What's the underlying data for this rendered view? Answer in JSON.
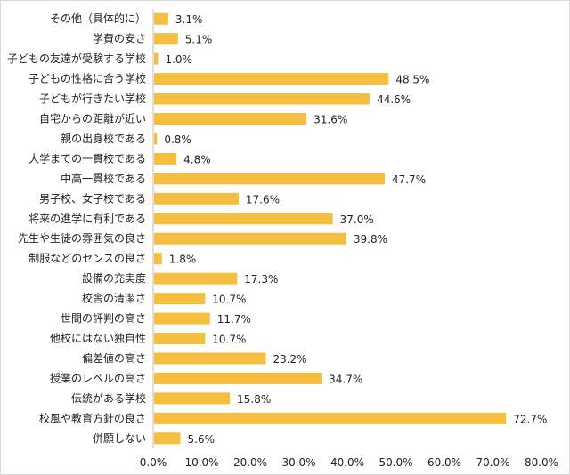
{
  "chart_data": {
    "type": "bar",
    "orientation": "horizontal",
    "categories": [
      "その他（具体的に）",
      "学費の安さ",
      "子どもの友達が受験する学校",
      "子どもの性格に合う学校",
      "子どもが行きたい学校",
      "自宅からの距離が近い",
      "親の出身校である",
      "大学までの一貫校である",
      "中高一貫校である",
      "男子校、女子校である",
      "将来の進学に有利である",
      "先生や生徒の雰囲気の良さ",
      "制服などのセンスの良さ",
      "設備の充実度",
      "校舎の清潔さ",
      "世間の評判の高さ",
      "他校にはない独自性",
      "偏差値の高さ",
      "授業のレベルの高さ",
      "伝統がある学校",
      "校風や教育方針の良さ",
      "併願しない"
    ],
    "values": [
      3.1,
      5.1,
      1.0,
      48.5,
      44.6,
      31.6,
      0.8,
      4.8,
      47.7,
      17.6,
      37.0,
      39.8,
      1.8,
      17.3,
      10.7,
      11.7,
      10.7,
      23.2,
      34.7,
      15.8,
      72.7,
      5.6
    ],
    "value_labels": [
      "3.1%",
      "5.1%",
      "1.0%",
      "48.5%",
      "44.6%",
      "31.6%",
      "0.8%",
      "4.8%",
      "47.7%",
      "17.6%",
      "37.0%",
      "39.8%",
      "1.8%",
      "17.3%",
      "10.7%",
      "11.7%",
      "10.7%",
      "23.2%",
      "34.7%",
      "15.8%",
      "72.7%",
      "5.6%"
    ],
    "x_ticks": [
      "0.0%",
      "10.0%",
      "20.0%",
      "30.0%",
      "40.0%",
      "50.0%",
      "60.0%",
      "70.0%",
      "80.0%"
    ],
    "xlim": [
      0,
      80
    ],
    "grid": false,
    "legend": "none",
    "bar_color": "#f5be41",
    "axis_color": "#bfbfbf"
  }
}
